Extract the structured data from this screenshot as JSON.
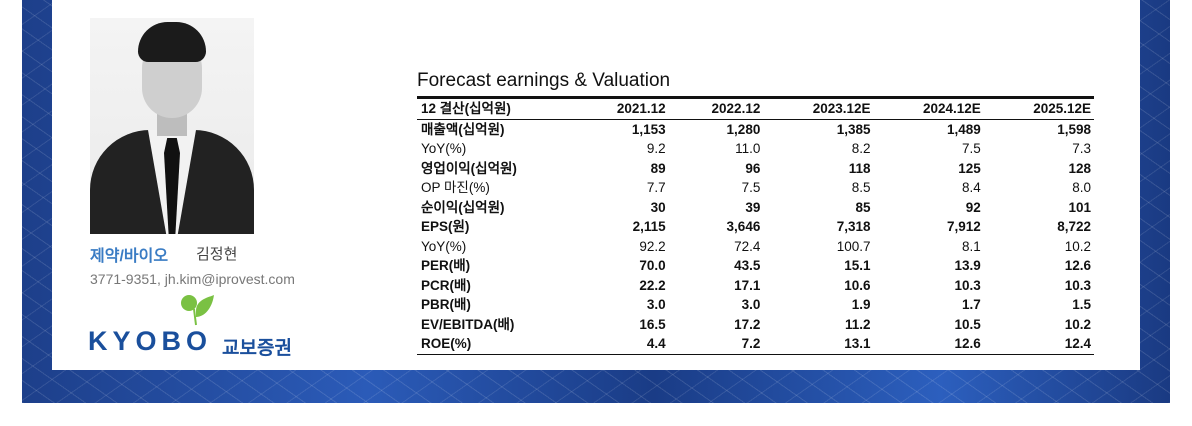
{
  "analyst": {
    "sector": "제약/바이오",
    "name": "김정현",
    "contact": "3771-9351, jh.kim@iprovest.com"
  },
  "logo": {
    "en": "KYOBO",
    "kr": "교보증권",
    "color": "#1a4f9c",
    "leaf_color": "#7ac143"
  },
  "table": {
    "title": "Forecast earnings & Valuation",
    "headers": [
      "12 결산(십억원)",
      "2021.12",
      "2022.12",
      "2023.12E",
      "2024.12E",
      "2025.12E"
    ],
    "rows": [
      {
        "label": "매출액(십억원)",
        "bold": true,
        "values": [
          "1,153",
          "1,280",
          "1,385",
          "1,489",
          "1,598"
        ]
      },
      {
        "label": "YoY(%)",
        "bold": false,
        "values": [
          "9.2",
          "11.0",
          "8.2",
          "7.5",
          "7.3"
        ]
      },
      {
        "label": "영업이익(십억원)",
        "bold": true,
        "values": [
          "89",
          "96",
          "118",
          "125",
          "128"
        ]
      },
      {
        "label": "OP 마진(%)",
        "bold": false,
        "values": [
          "7.7",
          "7.5",
          "8.5",
          "8.4",
          "8.0"
        ]
      },
      {
        "label": "순이익(십억원)",
        "bold": true,
        "values": [
          "30",
          "39",
          "85",
          "92",
          "101"
        ]
      },
      {
        "label": "EPS(원)",
        "bold": true,
        "values": [
          "2,115",
          "3,646",
          "7,318",
          "7,912",
          "8,722"
        ]
      },
      {
        "label": "YoY(%)",
        "bold": false,
        "values": [
          "92.2",
          "72.4",
          "100.7",
          "8.1",
          "10.2"
        ]
      },
      {
        "label": "PER(배)",
        "bold": true,
        "values": [
          "70.0",
          "43.5",
          "15.1",
          "13.9",
          "12.6"
        ]
      },
      {
        "label": "PCR(배)",
        "bold": true,
        "values": [
          "22.2",
          "17.1",
          "10.6",
          "10.3",
          "10.3"
        ]
      },
      {
        "label": "PBR(배)",
        "bold": true,
        "values": [
          "3.0",
          "3.0",
          "1.9",
          "1.7",
          "1.5"
        ]
      },
      {
        "label": "EV/EBITDA(배)",
        "bold": true,
        "values": [
          "16.5",
          "17.2",
          "11.2",
          "10.5",
          "10.2"
        ]
      },
      {
        "label": "ROE(%)",
        "bold": true,
        "values": [
          "4.4",
          "7.2",
          "13.1",
          "12.6",
          "12.4"
        ]
      }
    ]
  }
}
